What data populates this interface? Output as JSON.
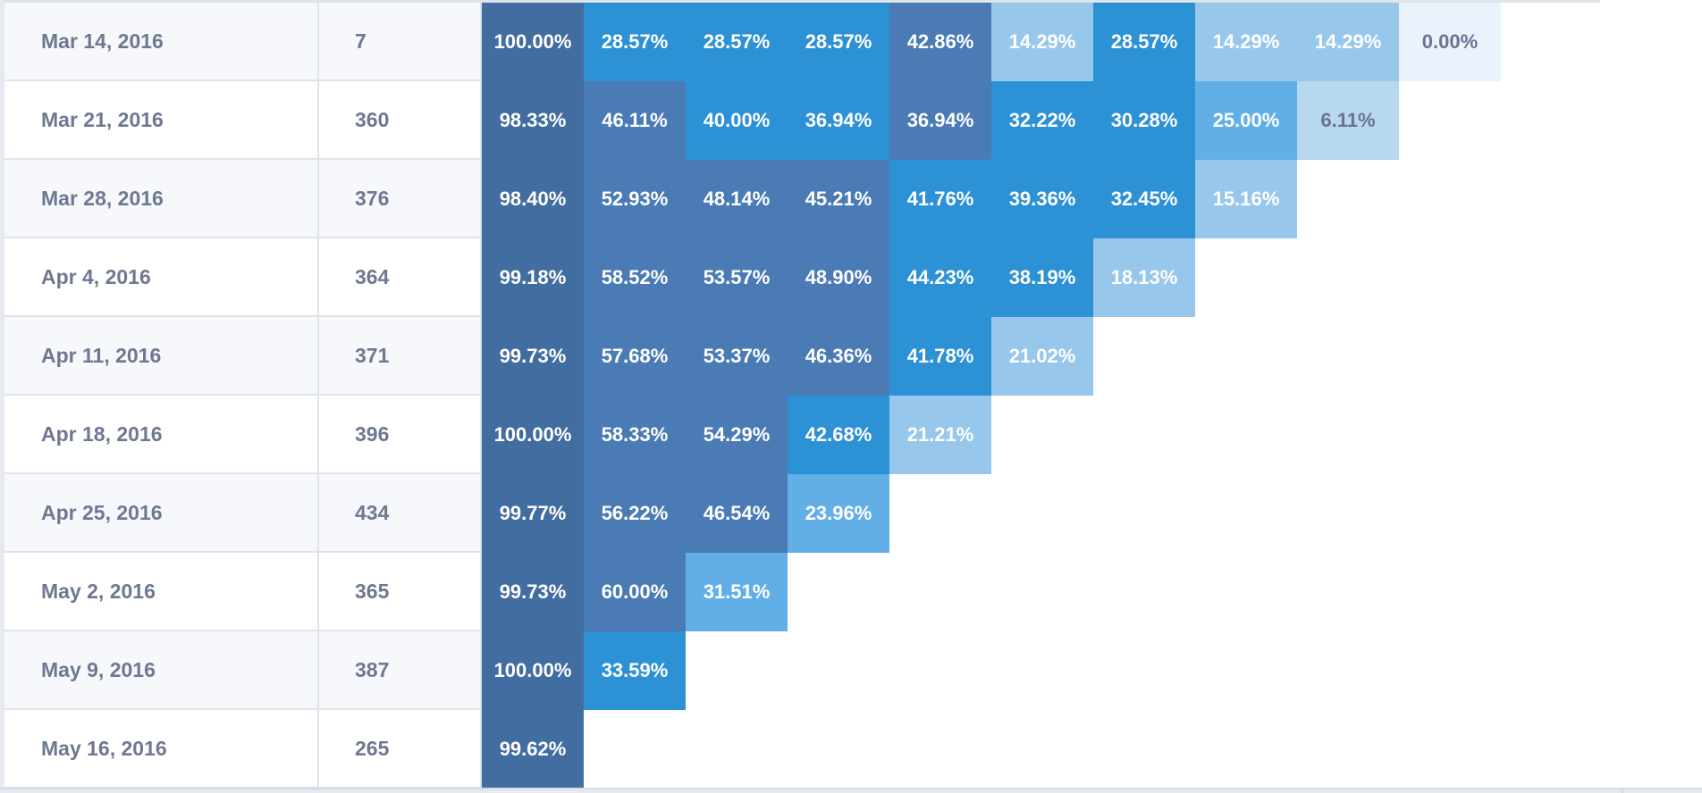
{
  "colors": {
    "c100": "#426da0",
    "c50": "#4a7bb5",
    "c40": "#2d91d6",
    "c25": "#62aee6",
    "c15": "#97c7eb",
    "c5": "#b8d8f0",
    "c0": "#eaf3fb"
  },
  "chart_data": {
    "type": "heatmap",
    "title": "",
    "rows": [
      {
        "date": "Mar 14, 2016",
        "count": "7",
        "values": [
          "100.00%",
          "28.57%",
          "28.57%",
          "28.57%",
          "42.86%",
          "14.29%",
          "28.57%",
          "14.29%",
          "14.29%",
          "0.00%"
        ]
      },
      {
        "date": "Mar 21, 2016",
        "count": "360",
        "values": [
          "98.33%",
          "46.11%",
          "40.00%",
          "36.94%",
          "36.94%",
          "32.22%",
          "30.28%",
          "25.00%",
          "6.11%"
        ]
      },
      {
        "date": "Mar 28, 2016",
        "count": "376",
        "values": [
          "98.40%",
          "52.93%",
          "48.14%",
          "45.21%",
          "41.76%",
          "39.36%",
          "32.45%",
          "15.16%"
        ]
      },
      {
        "date": "Apr 4, 2016",
        "count": "364",
        "values": [
          "99.18%",
          "58.52%",
          "53.57%",
          "48.90%",
          "44.23%",
          "38.19%",
          "18.13%"
        ]
      },
      {
        "date": "Apr 11, 2016",
        "count": "371",
        "values": [
          "99.73%",
          "57.68%",
          "53.37%",
          "46.36%",
          "41.78%",
          "21.02%"
        ]
      },
      {
        "date": "Apr 18, 2016",
        "count": "396",
        "values": [
          "100.00%",
          "58.33%",
          "54.29%",
          "42.68%",
          "21.21%"
        ]
      },
      {
        "date": "Apr 25, 2016",
        "count": "434",
        "values": [
          "99.77%",
          "56.22%",
          "46.54%",
          "23.96%"
        ]
      },
      {
        "date": "May 2, 2016",
        "count": "365",
        "values": [
          "99.73%",
          "60.00%",
          "31.51%"
        ]
      },
      {
        "date": "May 9, 2016",
        "count": "387",
        "values": [
          "100.00%",
          "33.59%"
        ]
      },
      {
        "date": "May 16, 2016",
        "count": "265",
        "values": [
          "99.62%"
        ]
      }
    ]
  }
}
